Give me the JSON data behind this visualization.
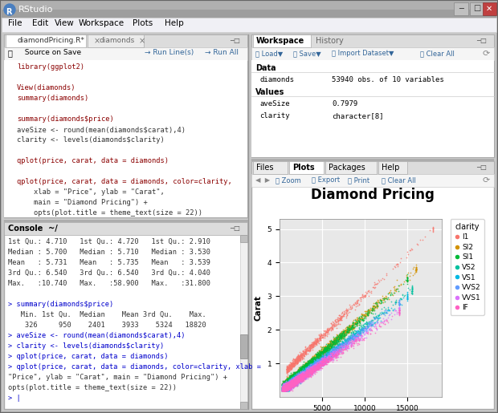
{
  "title": "RStudio",
  "bg_color": "#adadad",
  "window_bg": "#f0f0f0",
  "panel_bg": "#ffffff",
  "title_bar_color": "#8a8a8a",
  "menu_bg": "#e8e8f0",
  "code_lines": [
    "library(ggplot2)",
    "",
    "View(diamonds)",
    "summary(diamonds)",
    "",
    "summary(diamonds$price)",
    "aveSize <- round(mean(diamonds$carat),4)",
    "clarity <- levels(diamonds$clarity)",
    "",
    "qplot(price, carat, data = diamonds)",
    "",
    "qplot(price, carat, data = diamonds, color=clarity,",
    "    xlab = \"Price\", ylab = \"Carat\",",
    "    main = \"Diamond Pricing\") +",
    "    opts(plot.title = theme_text(size = 22))"
  ],
  "console_lines": [
    "1st Qu.: 4.710   1st Qu.: 4.720   1st Qu.: 2.910",
    "Median : 5.700   Median : 5.710   Median : 3.530",
    "Mean   : 5.731   Mean   : 5.735   Mean   : 3.539",
    "3rd Qu.: 6.540   3rd Qu.: 6.540   3rd Qu.: 4.040",
    "Max.   :10.740   Max.   :58.900   Max.   :31.800",
    "",
    "> summary(diamonds$price)",
    "   Min. 1st Qu.  Median    Mean 3rd Qu.    Max.",
    "    326     950    2401    3933    5324   18820",
    "> aveSize <- round(mean(diamonds$carat),4)",
    "> clarity <- levels(diamonds$clarity)",
    "> qplot(price, carat, data = diamonds)",
    "> qplot(price, carat, data = diamonds, color=clarity, xlab =",
    "\"Price\", ylab = \"Carat\", main = \"Diamond Pricing\") +",
    "opts(plot.title = theme_text(size = 22))",
    "> |"
  ],
  "workspace_data": [
    [
      "Data",
      ""
    ],
    [
      "diamonds",
      "53940 obs. of 10 variables"
    ],
    [
      "Values",
      ""
    ],
    [
      "aveSize",
      "0.7979"
    ],
    [
      "clarity",
      "character[8]"
    ]
  ],
  "plot_title": "Diamond Pricing",
  "plot_xlabel": "Price",
  "plot_ylabel": "Carat",
  "clarity_colors": {
    "I1": "#f8756c",
    "SI2": "#d39200",
    "SI1": "#00ba38",
    "VS2": "#00c19f",
    "VS1": "#00b9e3",
    "VVS2": "#619cff",
    "VVS1": "#db72fb",
    "IF": "#ff61c3"
  },
  "plot_bg": "#e8e8e8",
  "plot_grid_color": "#ffffff",
  "code_color_red": "#cc2200",
  "code_color_black": "#333333",
  "code_color_string": "#aa6600"
}
